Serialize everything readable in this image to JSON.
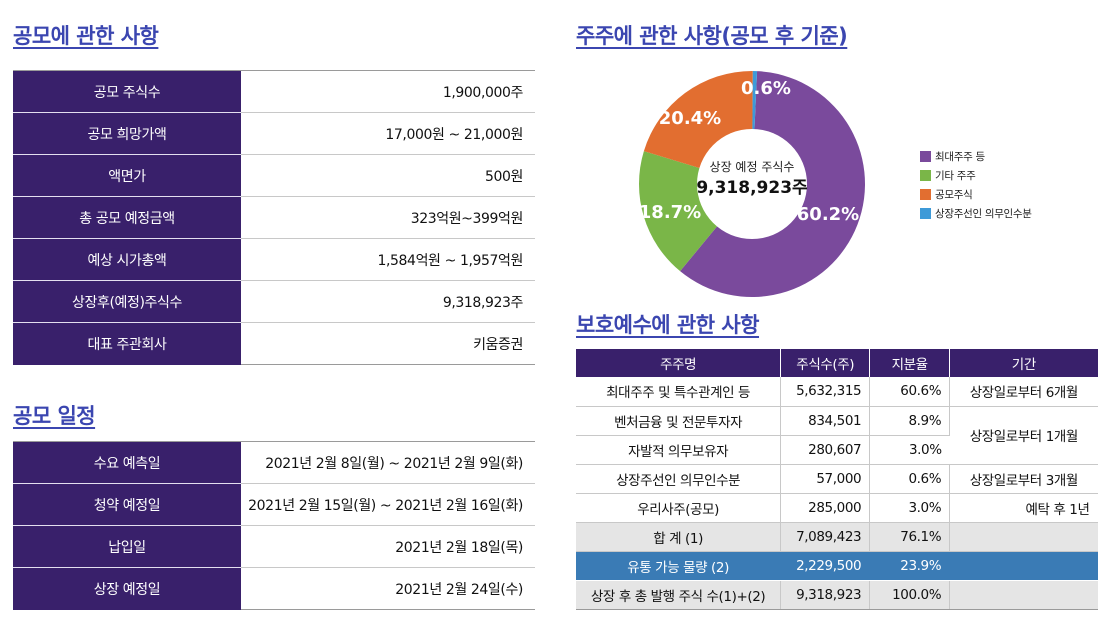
{
  "ipo_section": {
    "title": "공모에 관한 사항",
    "rows": [
      {
        "label": "공모 주식수",
        "value": "1,900,000주"
      },
      {
        "label": "공모 희망가액",
        "value": "17,000원 ~ 21,000원"
      },
      {
        "label": "액면가",
        "value": "500원"
      },
      {
        "label": "총 공모 예정금액",
        "value": "323억원~399억원"
      },
      {
        "label": "예상 시가총액",
        "value": "1,584억원 ~ 1,957억원"
      },
      {
        "label": "상장후(예정)주식수",
        "value": "9,318,923주"
      },
      {
        "label": "대표 주관회사",
        "value": "키움증권"
      }
    ]
  },
  "schedule_section": {
    "title": "공모 일정",
    "rows": [
      {
        "label": "수요 예측일",
        "value": "2021년 2월 8일(월) ~ 2021년 2월 9일(화)"
      },
      {
        "label": "청약 예정일",
        "value": "2021년 2월 15일(월) ~ 2021년 2월 16일(화)"
      },
      {
        "label": "납입일",
        "value": "2021년 2월 18일(목)"
      },
      {
        "label": "상장 예정일",
        "value": "2021년 2월 24일(수)"
      }
    ]
  },
  "shareholder_section": {
    "title": "주주에 관한 사항(공모 후 기준)"
  },
  "chart_data": {
    "type": "pie",
    "style": "donut",
    "center_label": "상장 예정 주식수",
    "center_value": "9,318,923주",
    "slices": [
      {
        "name": "최대주주 등",
        "value": 60.2,
        "label": "60.2%",
        "color": "#7a4a9c"
      },
      {
        "name": "기타 주주",
        "value": 18.7,
        "label": "18.7%",
        "color": "#7ab648"
      },
      {
        "name": "공모주식",
        "value": 20.4,
        "label": "20.4%",
        "color": "#e26e30"
      },
      {
        "name": "상장주선인 의무인수분",
        "value": 0.6,
        "label": "0.6%",
        "color": "#3e9ad8"
      }
    ],
    "legend_position": "right"
  },
  "lockup_section": {
    "title": "보호예수에 관한 사항",
    "headers": [
      "주주명",
      "주식수(주)",
      "지분율",
      "기간"
    ],
    "rows": [
      {
        "name": "최대주주 및 특수관계인 등",
        "shares": "5,632,315",
        "ratio": "60.6%",
        "period": "상장일로부터 6개월"
      },
      {
        "name": "벤처금융 및 전문투자자",
        "shares": "834,501",
        "ratio": "8.9%",
        "period": "상장일로부터 1개월"
      },
      {
        "name": "자발적 의무보유자",
        "shares": "280,607",
        "ratio": "3.0%"
      },
      {
        "name": "상장주선인 의무인수분",
        "shares": "57,000",
        "ratio": "0.6%",
        "period": "상장일로부터 3개월"
      },
      {
        "name": "우리사주(공모)",
        "shares": "285,000",
        "ratio": "3.0%",
        "period": "예탁 후 1년"
      }
    ],
    "total": {
      "name": "합 계 (1)",
      "shares": "7,089,423",
      "ratio": "76.1%"
    },
    "float": {
      "name": "유통 가능 물량 (2)",
      "shares": "2,229,500",
      "ratio": "23.9%"
    },
    "after": {
      "name": "상장 후 총 발행 주식 수(1)+(2)",
      "shares": "9,318,923",
      "ratio": "100.0%"
    }
  }
}
